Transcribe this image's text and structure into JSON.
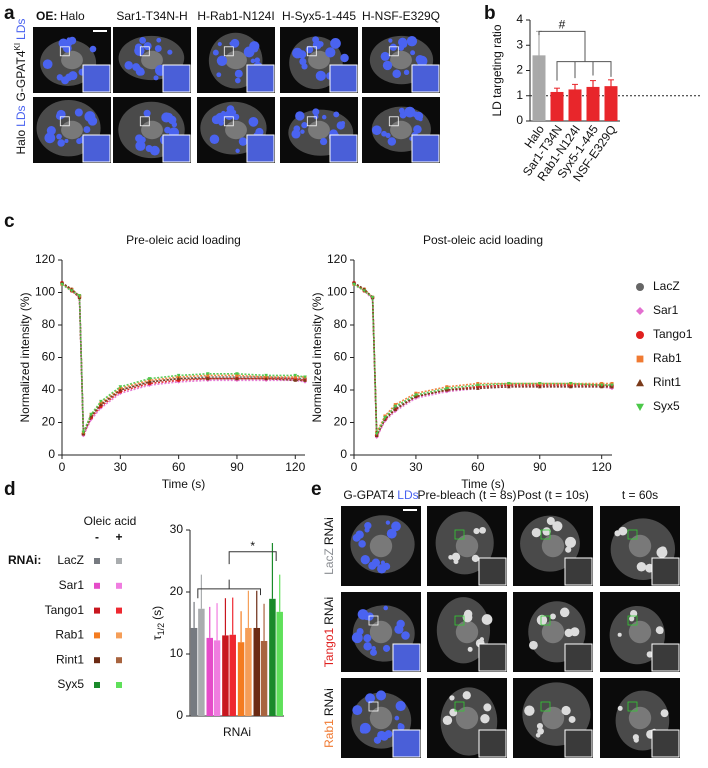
{
  "panel_labels": [
    "a",
    "b",
    "c",
    "d",
    "e"
  ],
  "panel_a": {
    "oe_label": "OE:",
    "columns": [
      "Halo",
      "Sar1-T34N-H",
      "H-Rab1-N124I",
      "H-Syx5-1-445",
      "H-NSF-E329Q"
    ],
    "rows": [
      {
        "text": "G-GPAT4",
        "sup": "KI",
        "ld": "LDs"
      },
      {
        "text": "Halo",
        "ld": "LDs"
      }
    ]
  },
  "panel_e": {
    "first_header": {
      "text": "G-GPAT4",
      "ld": "LDs"
    },
    "headers": [
      "Pre-bleach (t = 8s)",
      "Post (t = 10s)",
      "t = 60s"
    ],
    "rows": [
      {
        "gene": "LacZ",
        "color": "#8a8d92",
        "suffix": "RNAi"
      },
      {
        "gene": "Tango1",
        "color": "#e0201f",
        "suffix": "RNAi"
      },
      {
        "gene": "Rab1",
        "color": "#f07a32",
        "suffix": "RNAi"
      }
    ]
  },
  "chart_data": [
    {
      "type": "bar",
      "ylabel": "LD targeting ratio",
      "categories": [
        "Halo",
        "Sar1-T34N",
        "Rab1-N124I",
        "Syx5-1-445",
        "NSF-E329Q"
      ],
      "values": [
        2.6,
        1.15,
        1.25,
        1.35,
        1.38
      ],
      "errors": [
        0.95,
        0.15,
        0.2,
        0.25,
        0.25
      ],
      "colors": [
        "#a9a9a9",
        "#e8262b",
        "#e8262b",
        "#e8262b",
        "#e8262b"
      ],
      "ylim": [
        0,
        4
      ],
      "yticks": [
        0,
        1,
        2,
        3,
        4
      ],
      "reference_line": 1,
      "annotation": "#"
    },
    {
      "type": "line",
      "title": "Pre-oleic acid loading",
      "xlabel": "Time (s)",
      "ylabel": "Normalized intensity (%)",
      "x": [
        0,
        5,
        9,
        11,
        15,
        20,
        30,
        45,
        60,
        75,
        90,
        105,
        120,
        125
      ],
      "xlim": [
        0,
        125
      ],
      "xticks": [
        0,
        30,
        60,
        90,
        120
      ],
      "ylim": [
        0,
        120
      ],
      "yticks": [
        0,
        20,
        40,
        60,
        80,
        100,
        120
      ],
      "series": [
        {
          "name": "LacZ",
          "color": "#666666",
          "marker": "circle",
          "values": [
            106,
            102,
            98,
            13,
            24,
            31,
            40,
            45,
            47,
            48,
            48,
            48,
            47,
            47
          ]
        },
        {
          "name": "Sar1",
          "color": "#e36fd0",
          "marker": "diamond",
          "values": [
            105,
            101,
            97,
            12,
            22,
            29,
            38,
            43,
            45,
            46,
            46,
            46,
            46,
            45
          ]
        },
        {
          "name": "Tango1",
          "color": "#e0201f",
          "marker": "circle",
          "values": [
            106,
            101,
            97,
            13,
            23,
            30,
            39,
            44,
            46,
            47,
            47,
            47,
            47,
            46
          ]
        },
        {
          "name": "Rab1",
          "color": "#f07a32",
          "marker": "square",
          "values": [
            105,
            102,
            98,
            14,
            25,
            32,
            41,
            46,
            48,
            49,
            49,
            48,
            48,
            48
          ]
        },
        {
          "name": "Rint1",
          "color": "#7a3a1a",
          "marker": "triangle",
          "values": [
            106,
            102,
            97,
            13,
            24,
            31,
            40,
            45,
            47,
            47,
            47,
            47,
            46,
            46
          ]
        },
        {
          "name": "Syx5",
          "color": "#4cc84a",
          "marker": "triangle-down",
          "values": [
            105,
            101,
            98,
            14,
            25,
            33,
            42,
            47,
            49,
            50,
            50,
            49,
            49,
            48
          ]
        }
      ]
    },
    {
      "type": "line",
      "title": "Post-oleic acid loading",
      "xlabel": "Time (s)",
      "ylabel": "Normalized intensity (%)",
      "x": [
        0,
        5,
        9,
        11,
        15,
        20,
        30,
        45,
        60,
        75,
        90,
        105,
        120,
        125
      ],
      "xlim": [
        0,
        125
      ],
      "xticks": [
        0,
        30,
        60,
        90,
        120
      ],
      "ylim": [
        0,
        120
      ],
      "yticks": [
        0,
        20,
        40,
        60,
        80,
        100,
        120
      ],
      "legend": "right",
      "series": [
        {
          "name": "LacZ",
          "color": "#666666",
          "marker": "circle",
          "values": [
            106,
            102,
            97,
            12,
            22,
            29,
            36,
            40,
            42,
            43,
            43,
            43,
            43,
            43
          ]
        },
        {
          "name": "Sar1",
          "color": "#e36fd0",
          "marker": "diamond",
          "values": [
            105,
            101,
            96,
            11,
            21,
            27,
            35,
            39,
            41,
            42,
            42,
            42,
            42,
            41
          ]
        },
        {
          "name": "Tango1",
          "color": "#e0201f",
          "marker": "circle",
          "values": [
            106,
            101,
            97,
            12,
            22,
            28,
            36,
            40,
            42,
            43,
            43,
            43,
            43,
            42
          ]
        },
        {
          "name": "Rab1",
          "color": "#f07a32",
          "marker": "square",
          "values": [
            105,
            102,
            97,
            14,
            24,
            31,
            38,
            42,
            44,
            44,
            44,
            44,
            44,
            44
          ]
        },
        {
          "name": "Rint1",
          "color": "#7a3a1a",
          "marker": "triangle",
          "values": [
            106,
            102,
            97,
            12,
            22,
            28,
            36,
            40,
            41,
            42,
            42,
            42,
            42,
            42
          ]
        },
        {
          "name": "Syx5",
          "color": "#4cc84a",
          "marker": "triangle-down",
          "values": [
            105,
            101,
            97,
            13,
            23,
            30,
            37,
            41,
            43,
            44,
            44,
            44,
            43,
            43
          ]
        }
      ]
    },
    {
      "type": "grouped_bar",
      "ylabel": "τ",
      "ylabel_sub": "1/2",
      "ylabel_unit": "(s)",
      "xlabel": "RNAi",
      "legend_title": "Oleic acid",
      "legend_prefix": "RNAi:",
      "categories": [
        "LacZ",
        "Sar1",
        "Tango1",
        "Rab1",
        "Rint1",
        "Syx5"
      ],
      "series": [
        {
          "name": "-",
          "colors": [
            "#767a80",
            "#e54cc9",
            "#c8161e",
            "#f47c20",
            "#6b2a13",
            "#1a8a2a"
          ],
          "values": [
            14.2,
            12.6,
            13.0,
            11.9,
            14.2,
            18.9
          ],
          "errors": [
            4.2,
            5.0,
            6.0,
            5.0,
            6.0,
            9.0
          ]
        },
        {
          "name": "+",
          "colors": [
            "#a9acae",
            "#f07de0",
            "#ee2830",
            "#f59e58",
            "#a8643f",
            "#5fe05a"
          ],
          "values": [
            17.3,
            12.2,
            13.1,
            14.2,
            12.1,
            16.8
          ],
          "errors": [
            5.5,
            6.0,
            6.0,
            6.0,
            6.0,
            6.0
          ]
        }
      ],
      "ylim": [
        0,
        30
      ],
      "yticks": [
        0,
        10,
        20,
        30
      ],
      "annotation": "*"
    }
  ]
}
